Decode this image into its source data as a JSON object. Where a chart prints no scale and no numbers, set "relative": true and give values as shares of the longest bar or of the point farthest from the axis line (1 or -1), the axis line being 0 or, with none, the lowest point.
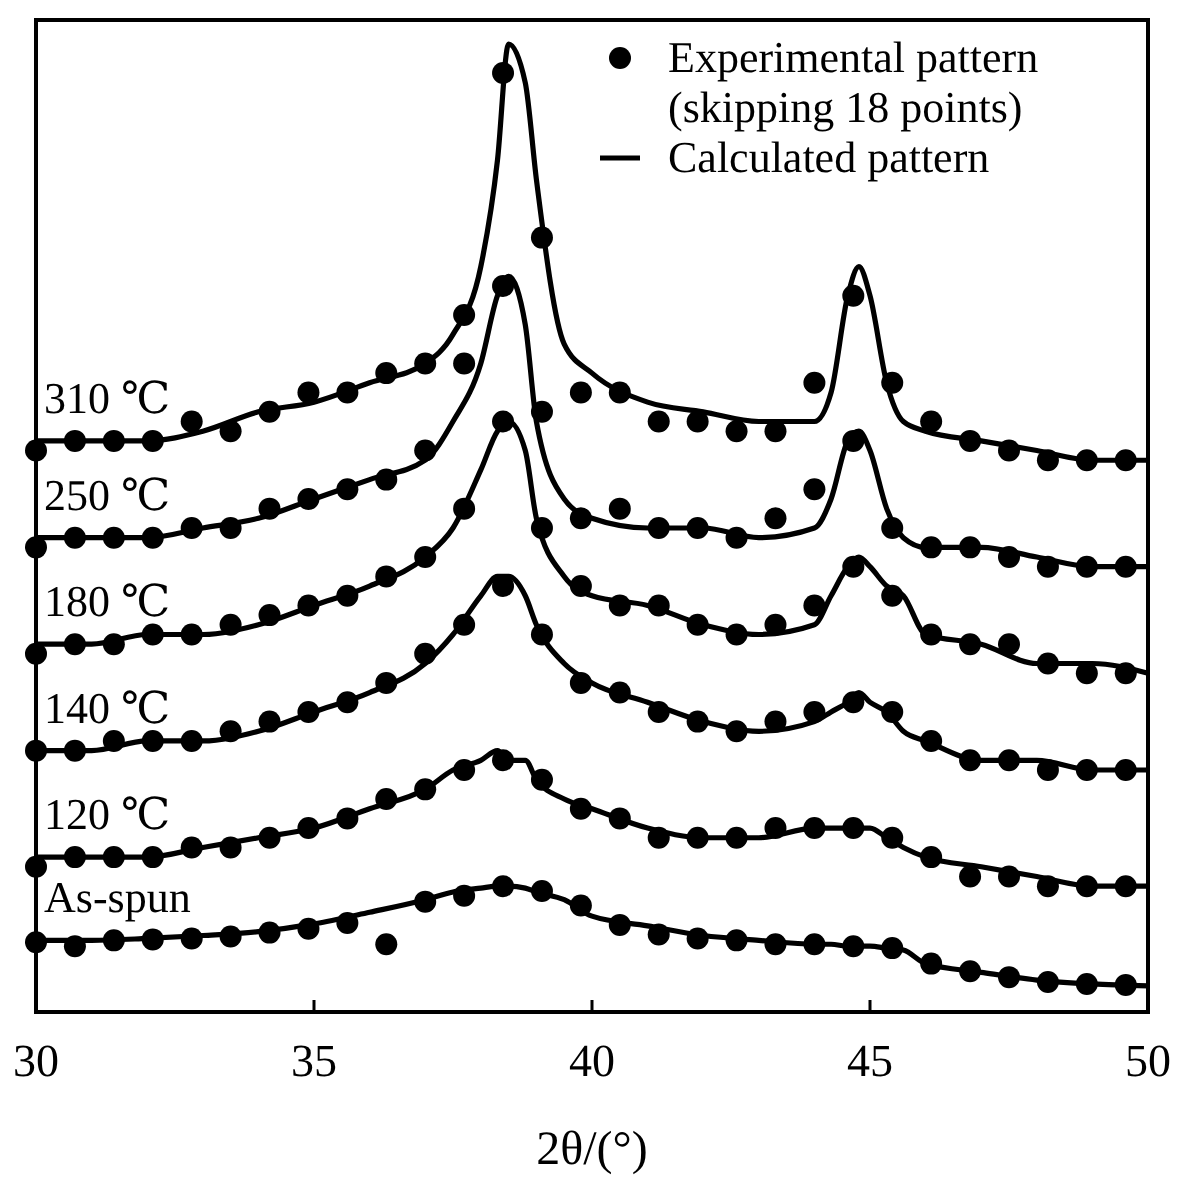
{
  "chart_data": {
    "type": "line",
    "relative": true,
    "xlabel": "2θ/(°)",
    "xlim": [
      30,
      50
    ],
    "xticks": [
      30,
      35,
      40,
      45,
      50
    ],
    "tick_labels": "x",
    "grid": false,
    "legend": "top right",
    "x": [
      30,
      31,
      32,
      33,
      34,
      35,
      36,
      37,
      37.5,
      38,
      38.3,
      38.5,
      38.8,
      39,
      39.5,
      40,
      41,
      42,
      43,
      44,
      44.3,
      44.6,
      44.8,
      45,
      45.3,
      45.6,
      46,
      47,
      48,
      49,
      50
    ],
    "series": [
      {
        "type": "scatter",
        "marker": "circle",
        "name": "Experimental pattern (skipping 18 points)",
        "color": "#000000",
        "x": [
          30,
          30.7,
          31.4,
          32.1,
          32.8,
          33.5,
          34.2,
          34.9,
          35.6,
          36.3,
          37,
          37.7,
          38.4,
          39.1,
          39.8,
          40.5,
          41.2,
          41.9,
          42.6,
          43.3,
          44,
          44.7,
          45.4,
          46.1,
          46.8,
          47.5,
          48.2,
          48.9,
          49.6
        ],
        "values": [
          0.58,
          0.59,
          0.59,
          0.59,
          0.61,
          0.6,
          0.62,
          0.64,
          0.64,
          0.66,
          0.67,
          0.72,
          0.97,
          0.8,
          0.64,
          0.64,
          0.61,
          0.61,
          0.6,
          0.6,
          0.65,
          0.74,
          0.65,
          0.61,
          0.59,
          0.58,
          0.57,
          0.57,
          0.57
        ]
      },
      {
        "type": "line",
        "marker": "none",
        "line_style": "solid",
        "name": "Calculated pattern",
        "color": "#000000",
        "values": [
          0.59,
          0.59,
          0.59,
          0.6,
          0.62,
          0.63,
          0.65,
          0.67,
          0.7,
          0.77,
          0.88,
          1,
          0.96,
          0.86,
          0.69,
          0.66,
          0.63,
          0.62,
          0.61,
          0.61,
          0.64,
          0.74,
          0.77,
          0.74,
          0.65,
          0.61,
          0.6,
          0.59,
          0.58,
          0.57,
          0.57
        ]
      },
      {
        "type": "scatter",
        "marker": "circle",
        "color": "#000000",
        "x": [
          30,
          30.7,
          31.4,
          32.1,
          32.8,
          33.5,
          34.2,
          34.9,
          35.6,
          36.3,
          37,
          37.7,
          38.4,
          39.1,
          39.8,
          40.5,
          41.2,
          41.9,
          42.6,
          43.3,
          44,
          44.7,
          45.4,
          46.1,
          46.8,
          47.5,
          48.2,
          48.9,
          49.6
        ],
        "values": [
          0.48,
          0.49,
          0.49,
          0.49,
          0.5,
          0.5,
          0.52,
          0.53,
          0.54,
          0.55,
          0.58,
          0.67,
          0.75,
          0.62,
          0.51,
          0.52,
          0.5,
          0.5,
          0.49,
          0.51,
          0.54,
          0.59,
          0.5,
          0.48,
          0.48,
          0.47,
          0.46,
          0.46,
          0.46
        ]
      },
      {
        "type": "line",
        "marker": "none",
        "line_style": "solid",
        "color": "#000000",
        "values": [
          0.49,
          0.49,
          0.49,
          0.5,
          0.51,
          0.53,
          0.55,
          0.57,
          0.61,
          0.67,
          0.74,
          0.76,
          0.71,
          0.61,
          0.53,
          0.51,
          0.5,
          0.5,
          0.49,
          0.5,
          0.53,
          0.59,
          0.6,
          0.58,
          0.52,
          0.49,
          0.48,
          0.48,
          0.47,
          0.46,
          0.46
        ]
      },
      {
        "type": "scatter",
        "marker": "circle",
        "color": "#000000",
        "x": [
          30,
          30.7,
          31.4,
          32.1,
          32.8,
          33.5,
          34.2,
          34.9,
          35.6,
          36.3,
          37,
          37.7,
          38.4,
          39.1,
          39.8,
          40.5,
          41.2,
          41.9,
          42.6,
          43.3,
          44,
          44.7,
          45.4,
          46.1,
          46.8,
          47.5,
          48.2,
          48.9,
          49.6
        ],
        "values": [
          0.37,
          0.38,
          0.38,
          0.39,
          0.39,
          0.4,
          0.41,
          0.42,
          0.43,
          0.45,
          0.47,
          0.52,
          0.61,
          0.5,
          0.44,
          0.42,
          0.42,
          0.4,
          0.39,
          0.4,
          0.42,
          0.46,
          0.43,
          0.39,
          0.38,
          0.38,
          0.36,
          0.35,
          0.35
        ]
      },
      {
        "type": "line",
        "marker": "none",
        "line_style": "solid",
        "color": "#000000",
        "values": [
          0.38,
          0.38,
          0.39,
          0.39,
          0.4,
          0.42,
          0.44,
          0.47,
          0.5,
          0.56,
          0.6,
          0.61,
          0.58,
          0.51,
          0.45,
          0.43,
          0.42,
          0.4,
          0.39,
          0.4,
          0.43,
          0.46,
          0.47,
          0.46,
          0.44,
          0.43,
          0.39,
          0.38,
          0.36,
          0.36,
          0.35
        ]
      },
      {
        "type": "scatter",
        "marker": "circle",
        "color": "#000000",
        "x": [
          30,
          30.7,
          31.4,
          32.1,
          32.8,
          33.5,
          34.2,
          34.9,
          35.6,
          36.3,
          37,
          37.7,
          38.4,
          39.1,
          39.8,
          40.5,
          41.2,
          41.9,
          42.6,
          43.3,
          44,
          44.7,
          45.4,
          46.1,
          46.8,
          47.5,
          48.2,
          48.9,
          49.6
        ],
        "values": [
          0.27,
          0.27,
          0.28,
          0.28,
          0.28,
          0.29,
          0.3,
          0.31,
          0.32,
          0.34,
          0.37,
          0.4,
          0.44,
          0.39,
          0.34,
          0.33,
          0.31,
          0.3,
          0.29,
          0.3,
          0.31,
          0.32,
          0.31,
          0.28,
          0.26,
          0.26,
          0.25,
          0.25,
          0.25
        ]
      },
      {
        "type": "line",
        "marker": "none",
        "line_style": "solid",
        "color": "#000000",
        "values": [
          0.27,
          0.27,
          0.28,
          0.28,
          0.29,
          0.31,
          0.33,
          0.36,
          0.39,
          0.43,
          0.45,
          0.45,
          0.43,
          0.4,
          0.36,
          0.34,
          0.32,
          0.3,
          0.29,
          0.3,
          0.31,
          0.32,
          0.33,
          0.32,
          0.31,
          0.29,
          0.28,
          0.26,
          0.26,
          0.25,
          0.25
        ]
      },
      {
        "type": "scatter",
        "marker": "circle",
        "color": "#000000",
        "x": [
          30,
          30.7,
          31.4,
          32.1,
          32.8,
          33.5,
          34.2,
          34.9,
          35.6,
          36.3,
          37,
          37.7,
          38.4,
          39.1,
          39.8,
          40.5,
          41.2,
          41.9,
          42.6,
          43.3,
          44,
          44.7,
          45.4,
          46.1,
          46.8,
          47.5,
          48.2,
          48.9,
          49.6
        ],
        "values": [
          0.15,
          0.16,
          0.16,
          0.16,
          0.17,
          0.17,
          0.18,
          0.19,
          0.2,
          0.22,
          0.23,
          0.25,
          0.26,
          0.24,
          0.21,
          0.2,
          0.18,
          0.18,
          0.18,
          0.19,
          0.19,
          0.19,
          0.18,
          0.16,
          0.14,
          0.14,
          0.13,
          0.13,
          0.13
        ]
      },
      {
        "type": "line",
        "marker": "none",
        "line_style": "solid",
        "color": "#000000",
        "values": [
          0.16,
          0.16,
          0.16,
          0.17,
          0.18,
          0.19,
          0.21,
          0.23,
          0.25,
          0.26,
          0.27,
          0.26,
          0.26,
          0.24,
          0.22,
          0.21,
          0.19,
          0.18,
          0.18,
          0.19,
          0.19,
          0.19,
          0.19,
          0.19,
          0.18,
          0.17,
          0.16,
          0.15,
          0.14,
          0.13,
          0.13
        ]
      },
      {
        "type": "scatter",
        "marker": "circle",
        "color": "#000000",
        "x": [
          30,
          30.7,
          31.4,
          32.1,
          32.8,
          33.5,
          34.2,
          34.9,
          35.6,
          36.3,
          37,
          37.7,
          38.4,
          39.1,
          39.8,
          40.5,
          41.2,
          41.9,
          42.6,
          43.3,
          44,
          44.7,
          45.4,
          46.1,
          46.8,
          47.5,
          48.2,
          48.9,
          49.6
        ],
        "values": [
          0.072,
          0.068,
          0.074,
          0.075,
          0.076,
          0.078,
          0.082,
          0.086,
          0.092,
          0.07,
          0.114,
          0.12,
          0.13,
          0.125,
          0.11,
          0.09,
          0.08,
          0.076,
          0.074,
          0.07,
          0.07,
          0.068,
          0.066,
          0.05,
          0.042,
          0.036,
          0.031,
          0.029,
          0.028
        ]
      },
      {
        "type": "line",
        "marker": "none",
        "line_style": "solid",
        "color": "#000000",
        "values": [
          0.074,
          0.074,
          0.076,
          0.079,
          0.083,
          0.091,
          0.103,
          0.116,
          0.124,
          0.128,
          0.13,
          0.13,
          0.128,
          0.124,
          0.116,
          0.099,
          0.089,
          0.079,
          0.074,
          0.07,
          0.07,
          0.068,
          0.068,
          0.068,
          0.066,
          0.064,
          0.05,
          0.041,
          0.033,
          0.029,
          0.027
        ]
      }
    ],
    "annotations": [
      "310 ℃",
      "250 ℃",
      "180 ℃",
      "140 ℃",
      "120 ℃",
      "As-spun"
    ]
  }
}
